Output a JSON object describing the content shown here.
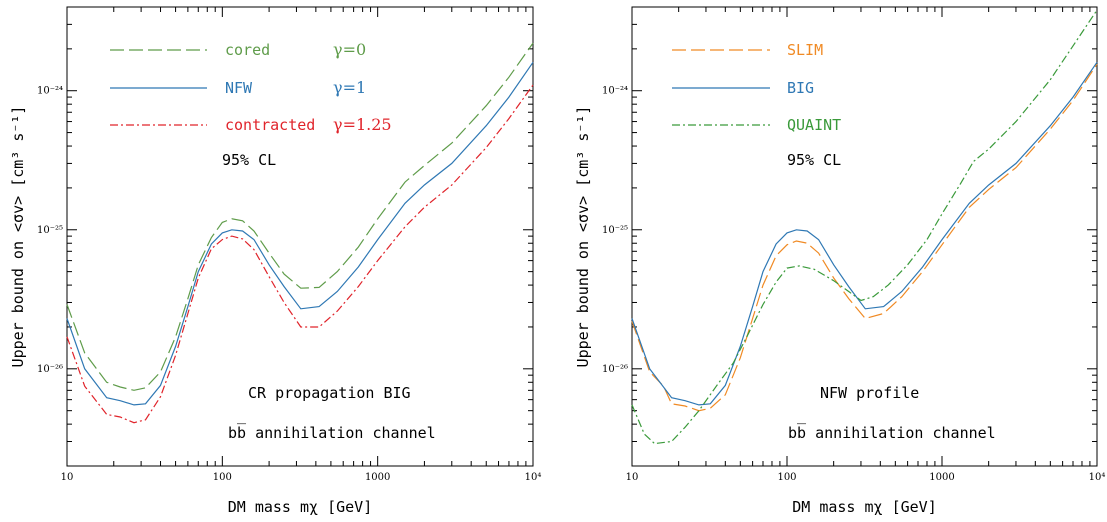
{
  "chart_data": [
    {
      "type": "line",
      "xscale": "log",
      "yscale": "log",
      "xlim": [
        10,
        10000
      ],
      "ylim": [
        2e-27,
        4e-24
      ],
      "xlabel": "DM mass mχ [GeV]",
      "ylabel": "Upper bound on <σv> [cm³ s⁻¹]",
      "x_ticks": [
        "10",
        "100",
        "1000",
        "10⁴"
      ],
      "y_ticks": [
        "10⁻²⁶",
        "10⁻²⁵",
        "10⁻²⁴"
      ],
      "legend_placement": "top-left",
      "annotations": [
        "95% CL",
        "CR propagation BIG",
        "bb̅ annihilation channel"
      ],
      "series": [
        {
          "name": "cored",
          "label2": "γ=0",
          "color": "#5f9c4a",
          "dash": "dashed",
          "points": [
            [
              10,
              2.9e-26
            ],
            [
              13,
              1.3e-26
            ],
            [
              18,
              8e-27
            ],
            [
              22,
              7.4e-27
            ],
            [
              27,
              7e-27
            ],
            [
              32,
              7.3e-27
            ],
            [
              40,
              9.5e-27
            ],
            [
              50,
              1.7e-26
            ],
            [
              60,
              3.2e-26
            ],
            [
              70,
              5.6e-26
            ],
            [
              85,
              8.8e-26
            ],
            [
              100,
              1.13e-25
            ],
            [
              115,
              1.2e-25
            ],
            [
              135,
              1.16e-25
            ],
            [
              160,
              9.8e-26
            ],
            [
              200,
              6.8e-26
            ],
            [
              250,
              4.8e-26
            ],
            [
              320,
              3.8e-26
            ],
            [
              420,
              3.85e-26
            ],
            [
              550,
              5e-26
            ],
            [
              750,
              7.5e-26
            ],
            [
              1000,
              1.2e-25
            ],
            [
              1500,
              2.2e-25
            ],
            [
              2000,
              2.9e-25
            ],
            [
              3000,
              4.2e-25
            ],
            [
              5000,
              7.8e-25
            ],
            [
              7000,
              1.25e-24
            ],
            [
              10000,
              2.2e-24
            ]
          ]
        },
        {
          "name": "NFW",
          "label2": "γ=1",
          "color": "#2f78b4",
          "dash": "solid",
          "points": [
            [
              10,
              2.3e-26
            ],
            [
              13,
              1e-26
            ],
            [
              18,
              6.2e-27
            ],
            [
              22,
              5.9e-27
            ],
            [
              27,
              5.5e-27
            ],
            [
              32,
              5.6e-27
            ],
            [
              40,
              7.6e-27
            ],
            [
              50,
              1.45e-26
            ],
            [
              60,
              2.8e-26
            ],
            [
              70,
              5e-26
            ],
            [
              85,
              7.9e-26
            ],
            [
              100,
              9.5e-26
            ],
            [
              115,
              1e-25
            ],
            [
              135,
              9.8e-26
            ],
            [
              160,
              8.5e-26
            ],
            [
              200,
              5.6e-26
            ],
            [
              250,
              3.9e-26
            ],
            [
              320,
              2.7e-26
            ],
            [
              420,
              2.8e-26
            ],
            [
              550,
              3.6e-26
            ],
            [
              750,
              5.4e-26
            ],
            [
              1000,
              8.5e-26
            ],
            [
              1500,
              1.55e-25
            ],
            [
              2000,
              2.1e-25
            ],
            [
              3000,
              3e-25
            ],
            [
              5000,
              5.6e-25
            ],
            [
              7000,
              9e-25
            ],
            [
              10000,
              1.6e-24
            ]
          ]
        },
        {
          "name": "contracted",
          "label2": "γ=1.25",
          "color": "#e0242b",
          "dash": "dashdot",
          "points": [
            [
              10,
              1.7e-26
            ],
            [
              13,
              7.5e-27
            ],
            [
              18,
              4.7e-27
            ],
            [
              22,
              4.5e-27
            ],
            [
              27,
              4.1e-27
            ],
            [
              32,
              4.3e-27
            ],
            [
              40,
              6.3e-27
            ],
            [
              50,
              1.25e-26
            ],
            [
              60,
              2.5e-26
            ],
            [
              70,
              4.5e-26
            ],
            [
              85,
              7.3e-26
            ],
            [
              100,
              8.5e-26
            ],
            [
              115,
              9e-26
            ],
            [
              135,
              8.6e-26
            ],
            [
              160,
              7.2e-26
            ],
            [
              200,
              4.6e-26
            ],
            [
              250,
              3e-26
            ],
            [
              320,
              2e-26
            ],
            [
              420,
              2e-26
            ],
            [
              550,
              2.6e-26
            ],
            [
              750,
              3.9e-26
            ],
            [
              1000,
              6e-26
            ],
            [
              1500,
              1.05e-25
            ],
            [
              2000,
              1.45e-25
            ],
            [
              3000,
              2.1e-25
            ],
            [
              5000,
              3.9e-25
            ],
            [
              7000,
              6.3e-25
            ],
            [
              10000,
              1.1e-24
            ]
          ]
        }
      ]
    },
    {
      "type": "line",
      "xscale": "log",
      "yscale": "log",
      "xlim": [
        10,
        10000
      ],
      "ylim": [
        2e-27,
        4e-24
      ],
      "xlabel": "DM mass mχ [GeV]",
      "ylabel": "Upper bound on <σv> [cm³ s⁻¹]",
      "x_ticks": [
        "10",
        "100",
        "1000",
        "10⁴"
      ],
      "y_ticks": [
        "10⁻²⁶",
        "10⁻²⁵",
        "10⁻²⁴"
      ],
      "legend_placement": "top-left",
      "annotations": [
        "95% CL",
        "NFW profile",
        "bb̅ annihilation channel"
      ],
      "series": [
        {
          "name": "SLIM",
          "color": "#f08a24",
          "dash": "dashed",
          "points": [
            [
              10,
              2.2e-26
            ],
            [
              13,
              9.5e-27
            ],
            [
              16,
              7.5e-27
            ],
            [
              18,
              5.6e-27
            ],
            [
              22,
              5.4e-27
            ],
            [
              27,
              5e-27
            ],
            [
              32,
              5.2e-27
            ],
            [
              40,
              6.5e-27
            ],
            [
              50,
              1.2e-26
            ],
            [
              60,
              2.3e-26
            ],
            [
              70,
              4e-26
            ],
            [
              85,
              6.5e-26
            ],
            [
              100,
              7.8e-26
            ],
            [
              115,
              8.3e-26
            ],
            [
              135,
              8e-26
            ],
            [
              160,
              6.8e-26
            ],
            [
              200,
              4.5e-26
            ],
            [
              250,
              3.2e-26
            ],
            [
              320,
              2.3e-26
            ],
            [
              420,
              2.5e-26
            ],
            [
              550,
              3.3e-26
            ],
            [
              750,
              5e-26
            ],
            [
              1000,
              7.8e-26
            ],
            [
              1500,
              1.45e-25
            ],
            [
              2000,
              1.95e-25
            ],
            [
              3000,
              2.8e-25
            ],
            [
              5000,
              5.3e-25
            ],
            [
              7000,
              8.5e-25
            ],
            [
              10000,
              1.55e-24
            ]
          ]
        },
        {
          "name": "BIG",
          "color": "#2f78b4",
          "dash": "solid",
          "points": [
            [
              10,
              2.3e-26
            ],
            [
              13,
              1e-26
            ],
            [
              18,
              6.2e-27
            ],
            [
              22,
              5.9e-27
            ],
            [
              27,
              5.5e-27
            ],
            [
              32,
              5.6e-27
            ],
            [
              40,
              7.6e-27
            ],
            [
              50,
              1.45e-26
            ],
            [
              60,
              2.8e-26
            ],
            [
              70,
              5e-26
            ],
            [
              85,
              7.9e-26
            ],
            [
              100,
              9.5e-26
            ],
            [
              115,
              1e-25
            ],
            [
              135,
              9.8e-26
            ],
            [
              160,
              8.5e-26
            ],
            [
              200,
              5.6e-26
            ],
            [
              250,
              3.9e-26
            ],
            [
              320,
              2.7e-26
            ],
            [
              420,
              2.8e-26
            ],
            [
              550,
              3.6e-26
            ],
            [
              750,
              5.4e-26
            ],
            [
              1000,
              8.5e-26
            ],
            [
              1500,
              1.55e-25
            ],
            [
              2000,
              2.1e-25
            ],
            [
              3000,
              3e-25
            ],
            [
              5000,
              5.6e-25
            ],
            [
              7000,
              9e-25
            ],
            [
              10000,
              1.6e-24
            ]
          ]
        },
        {
          "name": "QUAINT",
          "color": "#3a9a3a",
          "dash": "dashdot",
          "points": [
            [
              10,
              5.5e-27
            ],
            [
              12,
              3.4e-27
            ],
            [
              14,
              2.9e-27
            ],
            [
              18,
              3e-27
            ],
            [
              22,
              3.8e-27
            ],
            [
              27,
              5e-27
            ],
            [
              35,
              7.5e-27
            ],
            [
              45,
              1.1e-26
            ],
            [
              55,
              1.7e-26
            ],
            [
              70,
              2.9e-26
            ],
            [
              85,
              4.2e-26
            ],
            [
              100,
              5.3e-26
            ],
            [
              120,
              5.5e-26
            ],
            [
              150,
              5.2e-26
            ],
            [
              200,
              4.3e-26
            ],
            [
              250,
              3.6e-26
            ],
            [
              300,
              3.1e-26
            ],
            [
              360,
              3.3e-26
            ],
            [
              450,
              4e-26
            ],
            [
              600,
              5.6e-26
            ],
            [
              800,
              8.5e-26
            ],
            [
              1000,
              1.3e-25
            ],
            [
              1300,
              2.1e-25
            ],
            [
              1600,
              3.1e-25
            ],
            [
              2000,
              3.8e-25
            ],
            [
              3000,
              6e-25
            ],
            [
              5000,
              1.2e-24
            ],
            [
              7000,
              2.1e-24
            ],
            [
              10000,
              3.8e-24
            ]
          ]
        }
      ]
    }
  ]
}
